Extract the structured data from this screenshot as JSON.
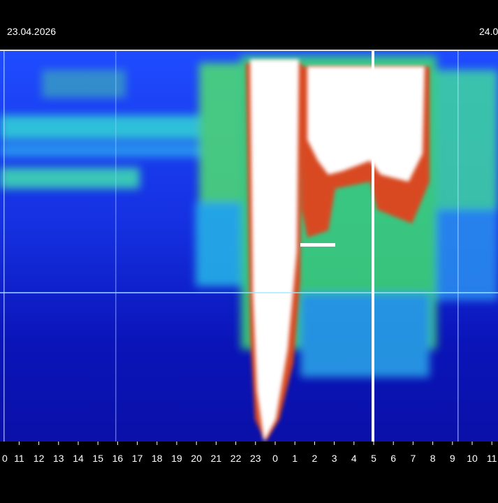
{
  "header": {
    "date_left": "23.04.2026",
    "date_right": "24.0"
  },
  "x_axis": {
    "labels": [
      "0",
      "11",
      "12",
      "13",
      "14",
      "15",
      "16",
      "17",
      "18",
      "19",
      "20",
      "21",
      "22",
      "23",
      "0",
      "1",
      "2",
      "3",
      "4",
      "5",
      "6",
      "7",
      "8",
      "9",
      "10",
      "11"
    ]
  }
}
